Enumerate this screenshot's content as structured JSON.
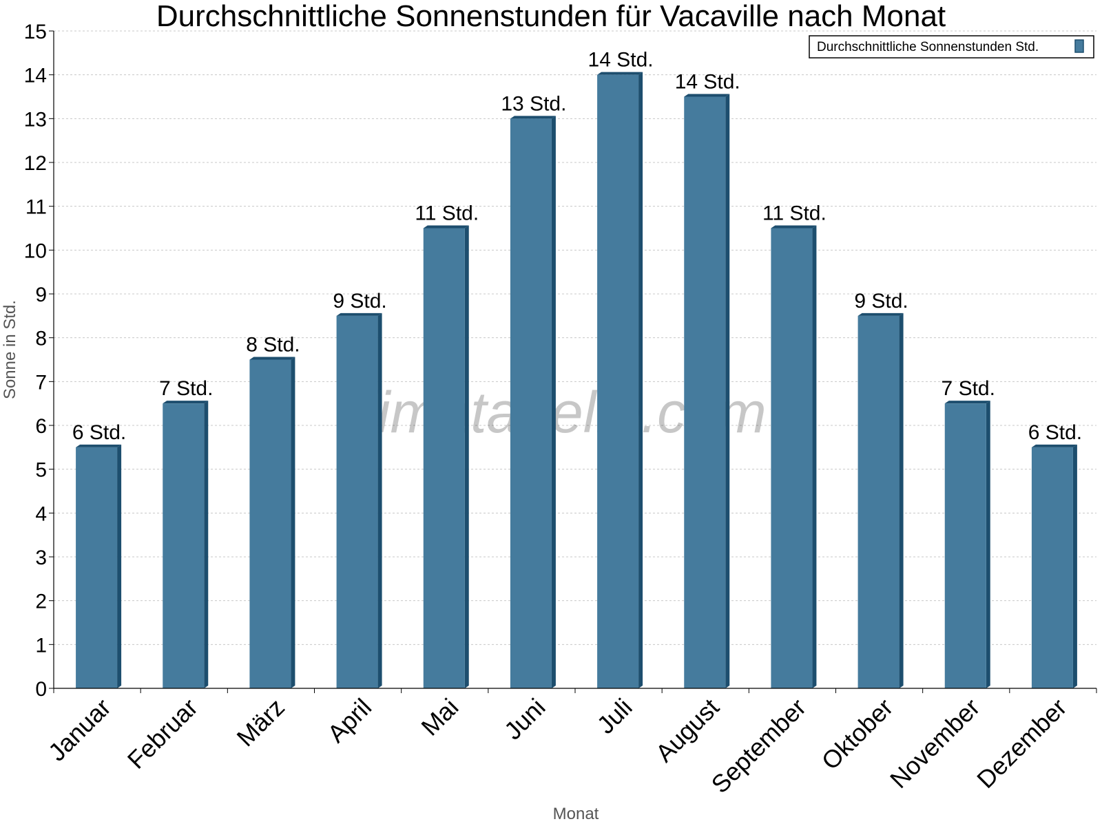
{
  "chart_data": {
    "type": "bar",
    "title": "Durchschnittliche Sonnenstunden für Vacaville nach Monat",
    "xlabel": "Monat",
    "ylabel": "Sonne in Std.",
    "ylim": [
      0,
      15
    ],
    "yticks": [
      0,
      1,
      2,
      3,
      4,
      5,
      6,
      7,
      8,
      9,
      10,
      11,
      12,
      13,
      14,
      15
    ],
    "grid": true,
    "legend_position": "top-right",
    "categories": [
      "Januar",
      "Februar",
      "März",
      "April",
      "Mai",
      "Juni",
      "Juli",
      "August",
      "September",
      "Oktober",
      "November",
      "Dezember"
    ],
    "series": [
      {
        "name": "Durchschnittliche Sonnenstunden Std.",
        "values": [
          5.5,
          6.5,
          7.5,
          8.5,
          10.5,
          13.0,
          14.0,
          13.5,
          10.5,
          8.5,
          6.5,
          5.5
        ],
        "data_labels": [
          "6 Std.",
          "7 Std.",
          "8 Std.",
          "9 Std.",
          "11 Std.",
          "13 Std.",
          "14 Std.",
          "14 Std.",
          "11 Std.",
          "9 Std.",
          "7 Std.",
          "6 Std."
        ],
        "color": "#457b9d",
        "side_color": "#1d4e6e"
      }
    ],
    "watermark": "klimatabelle.com"
  }
}
